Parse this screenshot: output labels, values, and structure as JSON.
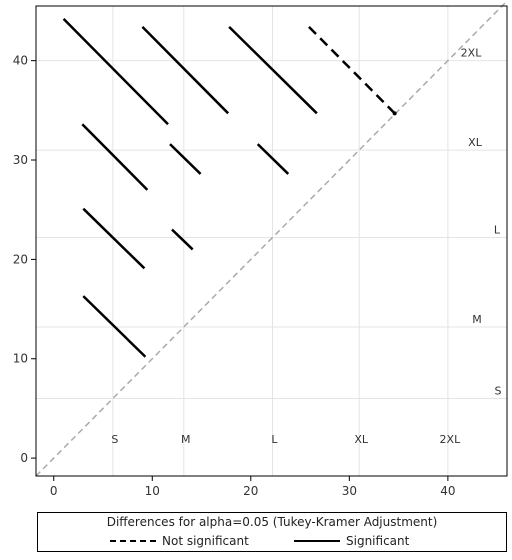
{
  "chart_data": {
    "type": "line",
    "title": "",
    "xlabel": "",
    "ylabel": "",
    "xlim": [
      -1.8,
      46
    ],
    "ylim": [
      -1.8,
      45.5
    ],
    "x_ticks": [
      0,
      10,
      20,
      30,
      40
    ],
    "y_ticks": [
      0,
      10,
      20,
      30,
      40
    ],
    "groups": [
      {
        "name": "S",
        "mean": 6.0
      },
      {
        "name": "M",
        "mean": 13.2
      },
      {
        "name": "L",
        "mean": 22.2
      },
      {
        "name": "XL",
        "mean": 31.0
      },
      {
        "name": "2XL",
        "mean": 40.0
      }
    ],
    "diagonal": {
      "from": [
        -1.8,
        -1.8
      ],
      "to": [
        46,
        46
      ],
      "style": "dashed",
      "color": "#aaaaaa"
    },
    "segments": [
      {
        "x1": 3.0,
        "y1": 16.3,
        "x2": 9.3,
        "y2": 10.2,
        "significant": true
      },
      {
        "x1": 3.0,
        "y1": 25.1,
        "x2": 9.2,
        "y2": 19.1,
        "significant": true
      },
      {
        "x1": 12.0,
        "y1": 23.0,
        "x2": 14.1,
        "y2": 21.0,
        "significant": true
      },
      {
        "x1": 2.9,
        "y1": 33.6,
        "x2": 9.5,
        "y2": 27.0,
        "significant": true
      },
      {
        "x1": 11.8,
        "y1": 31.6,
        "x2": 14.9,
        "y2": 28.6,
        "significant": true
      },
      {
        "x1": 20.7,
        "y1": 31.6,
        "x2": 23.8,
        "y2": 28.6,
        "significant": true
      },
      {
        "x1": 1.0,
        "y1": 44.2,
        "x2": 11.6,
        "y2": 33.6,
        "significant": true
      },
      {
        "x1": 9.0,
        "y1": 43.4,
        "x2": 17.7,
        "y2": 34.7,
        "significant": true
      },
      {
        "x1": 17.8,
        "y1": 43.4,
        "x2": 26.7,
        "y2": 34.7,
        "significant": true
      },
      {
        "x1": 25.9,
        "y1": 43.4,
        "x2": 34.6,
        "y2": 34.7,
        "significant": false
      }
    ],
    "legend": {
      "title": "Differences for alpha=0.05 (Tukey-Kramer Adjustment)",
      "items": [
        {
          "label": "Not significant",
          "style": "dashed"
        },
        {
          "label": "Significant",
          "style": "solid"
        }
      ],
      "position": "bottom"
    },
    "grid": true
  }
}
